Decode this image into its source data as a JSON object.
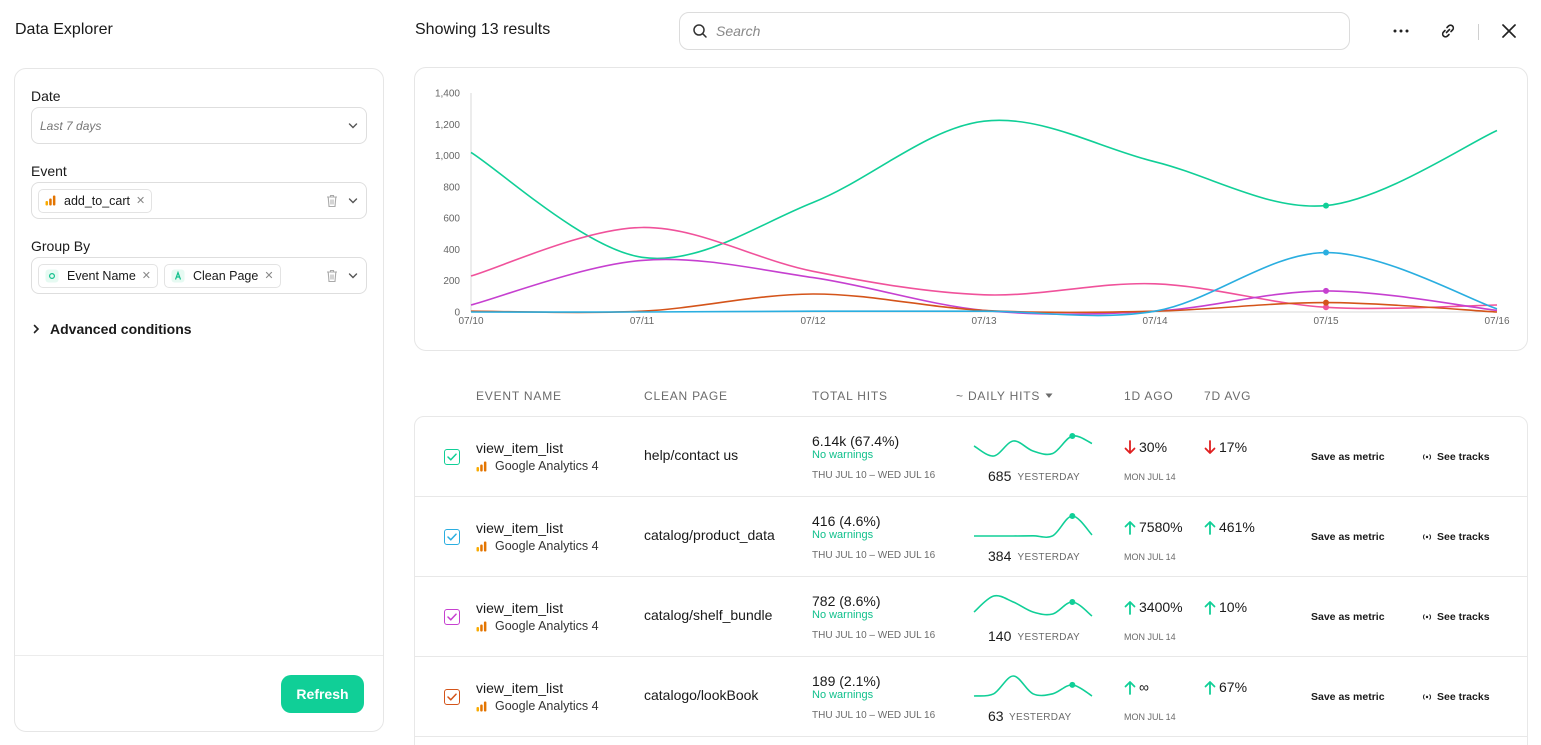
{
  "header": {
    "app_title": "Data Explorer",
    "results_title": "Showing 13 results",
    "search_placeholder": "Search",
    "icons": [
      "more-icon",
      "link-icon",
      "close-icon"
    ]
  },
  "sidebar": {
    "date": {
      "label": "Date",
      "value": "Last 7 days"
    },
    "event": {
      "label": "Event",
      "chips": [
        "add_to_cart"
      ]
    },
    "group_by": {
      "label": "Group By",
      "chips": [
        "Event Name",
        "Clean Page"
      ]
    },
    "advanced_label": "Advanced conditions",
    "refresh_label": "Refresh"
  },
  "colors": {
    "accent": "#10cf97",
    "green": "#10cf97",
    "blue": "#2aaee0",
    "purple": "#c640d0",
    "orange": "#d4541a",
    "pink": "#f0529b",
    "down": "#e02020"
  },
  "chart_data": {
    "type": "line",
    "x": [
      "07/10",
      "07/11",
      "07/12",
      "07/13",
      "07/14",
      "07/15",
      "07/16"
    ],
    "yticks": [
      0,
      200,
      400,
      600,
      800,
      "1,000",
      "1,200",
      "1,400"
    ],
    "ylim": [
      0,
      1400
    ],
    "grid": false,
    "series": [
      {
        "color": "#10cf97",
        "values": [
          1020,
          350,
          700,
          1220,
          960,
          680,
          1160
        ]
      },
      {
        "color": "#f0529b",
        "values": [
          230,
          540,
          260,
          110,
          180,
          30,
          45
        ]
      },
      {
        "color": "#c640d0",
        "values": [
          45,
          330,
          220,
          10,
          5,
          135,
          10
        ]
      },
      {
        "color": "#d4541a",
        "values": [
          5,
          5,
          115,
          10,
          5,
          60,
          0
        ]
      },
      {
        "color": "#2aaee0",
        "values": [
          0,
          0,
          5,
          5,
          5,
          380,
          20
        ]
      }
    ]
  },
  "table": {
    "columns": [
      "EVENT NAME",
      "CLEAN PAGE",
      "TOTAL HITS",
      "~ DAILY HITS",
      "1D AGO",
      "7D AVG"
    ],
    "rows": [
      {
        "event": "view_item_list",
        "source": "Google Analytics 4",
        "page": "help/contact us",
        "hits": "6.14k (67.4%)",
        "warn": "No warnings",
        "range": "THU JUL 10 – WED JUL 16",
        "yesterday": "685",
        "yesterday_label": "YESTERDAY",
        "ago": "30%",
        "ago_dir": "down",
        "ago_date": "MON JUL 14",
        "avg": "17%",
        "avg_dir": "down",
        "color": "#10cf97",
        "spark": [
          40,
          20,
          50,
          30,
          25,
          60,
          45
        ]
      },
      {
        "event": "view_item_list",
        "source": "Google Analytics 4",
        "page": "catalog/product_data",
        "hits": "416 (4.6%)",
        "warn": "No warnings",
        "range": "THU JUL 10 – WED JUL 16",
        "yesterday": "384",
        "yesterday_label": "YESTERDAY",
        "ago": "7580%",
        "ago_dir": "up",
        "ago_date": "MON JUL 14",
        "avg": "461%",
        "avg_dir": "up",
        "color": "#2aaee0",
        "spark": [
          5,
          5,
          5,
          6,
          6,
          95,
          10
        ]
      },
      {
        "event": "view_item_list",
        "source": "Google Analytics 4",
        "page": "catalog/shelf_bundle",
        "hits": "782 (8.6%)",
        "warn": "No warnings",
        "range": "THU JUL 10 – WED JUL 16",
        "yesterday": "140",
        "yesterday_label": "YESTERDAY",
        "ago": "3400%",
        "ago_dir": "up",
        "ago_date": "MON JUL 14",
        "avg": "10%",
        "avg_dir": "up",
        "color": "#c640d0",
        "spark": [
          20,
          60,
          45,
          20,
          15,
          45,
          10
        ]
      },
      {
        "event": "view_item_list",
        "source": "Google Analytics 4",
        "page": "catalogo/lookBook",
        "hits": "189 (2.1%)",
        "warn": "No warnings",
        "range": "THU JUL 10 – WED JUL 16",
        "yesterday": "63",
        "yesterday_label": "YESTERDAY",
        "ago": "∞",
        "ago_dir": "up",
        "ago_date": "MON JUL 14",
        "avg": "67%",
        "avg_dir": "up",
        "color": "#d4541a",
        "spark": [
          10,
          15,
          55,
          15,
          15,
          35,
          10
        ]
      }
    ],
    "save_label": "Save as metric",
    "tracks_label": "See tracks"
  }
}
